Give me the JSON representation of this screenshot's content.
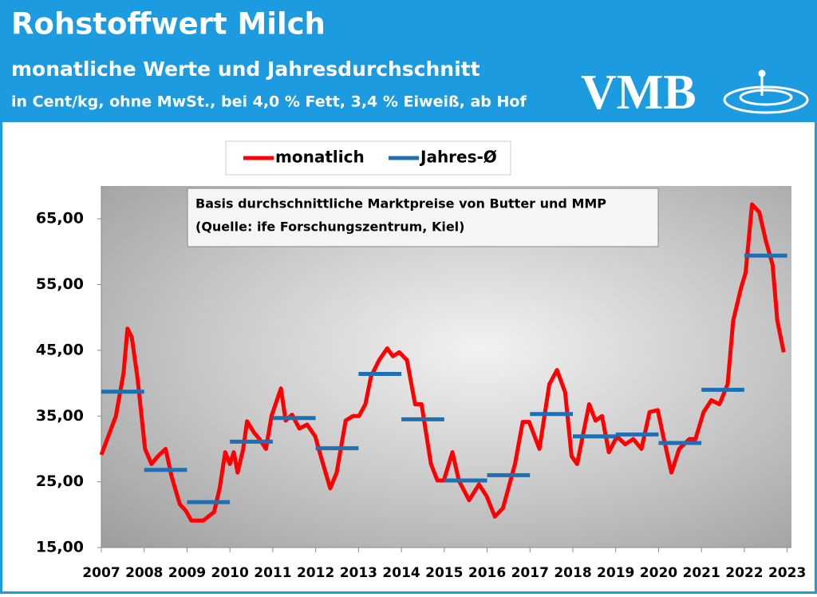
{
  "logo": "VMB",
  "chart_data": {
    "type": "line",
    "title": "Rohstoffwert Milch",
    "subtitle": "monatliche Werte und Jahresdurchschnitt",
    "unit_note": "in Cent/kg, ohne MwSt., bei 4,0 % Fett, 3,4 % Eiweiß, ab Hof",
    "annotation": [
      "Basis durchschnittliche Marktpreise von Butter und MMP",
      "(Quelle: ife Forschungszentrum, Kiel)"
    ],
    "xlim": [
      2007,
      2023.1
    ],
    "xticks": [
      2007,
      2008,
      2009,
      2010,
      2011,
      2012,
      2013,
      2014,
      2015,
      2016,
      2017,
      2018,
      2019,
      2020,
      2021,
      2022,
      2023
    ],
    "ylim": [
      15,
      70
    ],
    "yticks": [
      {
        "value": 15,
        "label": "15,00"
      },
      {
        "value": 25,
        "label": "25,00"
      },
      {
        "value": 35,
        "label": "35,00"
      },
      {
        "value": 45,
        "label": "45,00"
      },
      {
        "value": 55,
        "label": "55,00"
      },
      {
        "value": 65,
        "label": "65,00"
      }
    ],
    "legend": "top",
    "series": [
      {
        "name": "monatlich",
        "color": "#ff0000",
        "x": [
          2007.0,
          2007.34,
          2007.52,
          2007.61,
          2007.71,
          2007.84,
          2008.02,
          2008.17,
          2008.32,
          2008.5,
          2008.64,
          2008.83,
          2008.97,
          2009.1,
          2009.38,
          2009.63,
          2009.76,
          2009.89,
          2010.0,
          2010.09,
          2010.18,
          2010.31,
          2010.4,
          2010.56,
          2010.69,
          2010.84,
          2010.97,
          2011.19,
          2011.3,
          2011.45,
          2011.62,
          2011.8,
          2011.99,
          2012.12,
          2012.34,
          2012.49,
          2012.7,
          2012.87,
          2013.01,
          2013.16,
          2013.29,
          2013.48,
          2013.67,
          2013.8,
          2013.95,
          2014.13,
          2014.32,
          2014.47,
          2014.69,
          2014.84,
          2014.99,
          2015.19,
          2015.34,
          2015.58,
          2015.81,
          2015.99,
          2016.18,
          2016.37,
          2016.65,
          2016.83,
          2016.98,
          2017.22,
          2017.45,
          2017.63,
          2017.82,
          2017.97,
          2018.1,
          2018.38,
          2018.53,
          2018.68,
          2018.84,
          2019.03,
          2019.22,
          2019.41,
          2019.6,
          2019.79,
          2019.98,
          2020.13,
          2020.3,
          2020.48,
          2020.72,
          2020.86,
          2021.05,
          2021.23,
          2021.42,
          2021.61,
          2021.74,
          2021.92,
          2022.03,
          2022.18,
          2022.35,
          2022.5,
          2022.66,
          2022.77,
          2022.92
        ],
        "values": [
          29.1,
          35,
          41.6,
          48.3,
          47,
          41,
          30,
          27.7,
          28.9,
          30,
          25.8,
          21.6,
          20.6,
          19.1,
          19.1,
          20.4,
          24,
          29.5,
          27.7,
          29.5,
          26.4,
          30,
          34.2,
          32.5,
          31.5,
          30,
          35,
          39.2,
          34.3,
          35.2,
          33.1,
          33.7,
          31.9,
          28.9,
          24,
          26.4,
          34.3,
          35,
          35,
          36.8,
          41,
          43.5,
          45.3,
          44.1,
          44.7,
          43.5,
          36.8,
          36.8,
          27.7,
          25.2,
          25.2,
          29.5,
          25.2,
          22.2,
          24.6,
          22.8,
          19.7,
          21,
          27.7,
          34.1,
          34.1,
          30,
          39.8,
          42,
          38.6,
          28.9,
          27.7,
          36.8,
          34.3,
          35,
          29.5,
          31.9,
          30.7,
          31.5,
          30,
          35.6,
          35.9,
          31.3,
          26.4,
          30,
          31.5,
          31.5,
          35.6,
          37.4,
          36.8,
          39.8,
          49.5,
          54.4,
          56.8,
          67.2,
          66,
          61.7,
          58,
          49.5,
          44.7
        ]
      },
      {
        "name": "Jahres-Ø",
        "color": "#1f6fb4",
        "x": [
          2007,
          2008,
          2009,
          2010,
          2011,
          2012,
          2013,
          2014,
          2015,
          2016,
          2017,
          2018,
          2019,
          2020,
          2021,
          2022
        ],
        "values": [
          38.7,
          26.8,
          21.9,
          31.1,
          34.7,
          30.1,
          41.4,
          34.5,
          25.2,
          26,
          35.3,
          31.9,
          32.2,
          30.9,
          39,
          59.4
        ]
      }
    ]
  }
}
